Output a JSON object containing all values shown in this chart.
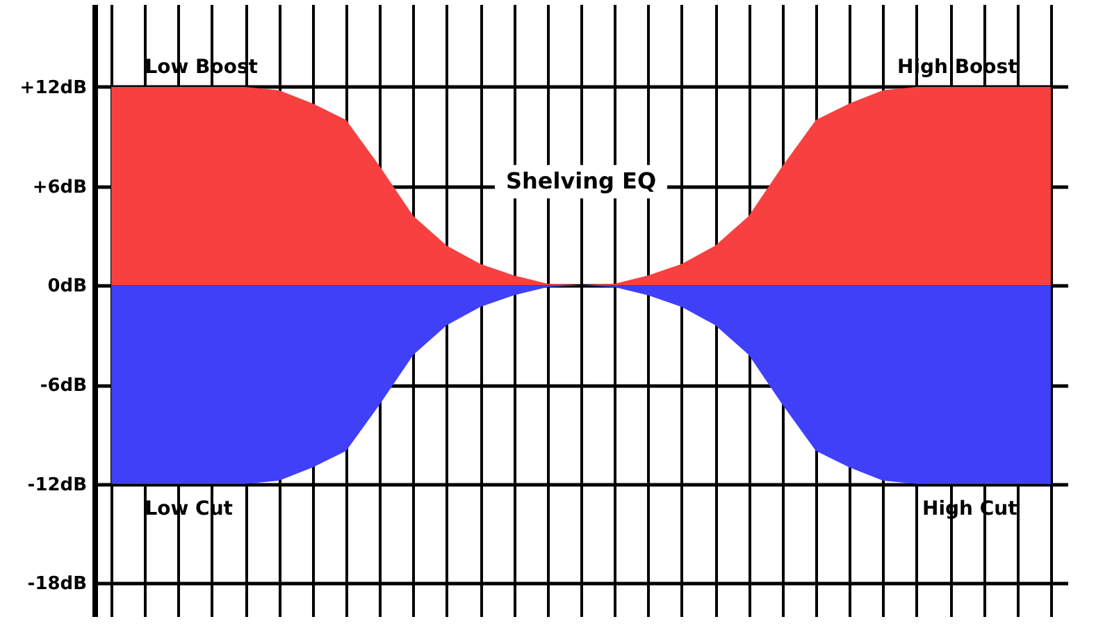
{
  "chart_data": {
    "type": "area",
    "annotations": [
      "Shelving EQ"
    ],
    "categories": [
      null,
      null,
      null,
      null,
      null,
      null,
      null,
      null,
      null,
      null,
      null,
      null,
      null,
      null,
      null,
      null,
      null,
      null,
      null,
      null,
      null,
      null,
      null,
      null,
      null,
      null,
      null,
      null,
      null
    ],
    "series": [
      {
        "name": "Low Boost",
        "color": "#f84040",
        "values": [
          12,
          12,
          12,
          12,
          12,
          11.8,
          11,
          10,
          7.2,
          4.2,
          2.4,
          1.3,
          0.6,
          0.1,
          0,
          null,
          null,
          null,
          null,
          null,
          null,
          null,
          null,
          null,
          null,
          null,
          null,
          null,
          null
        ]
      },
      {
        "name": "Low Cut",
        "color": "#4040f8",
        "values": [
          -12,
          -12,
          -12,
          -12,
          -12,
          -11.8,
          -11,
          -10,
          -7.2,
          -4.2,
          -2.4,
          -1.3,
          -0.6,
          -0.1,
          0,
          null,
          null,
          null,
          null,
          null,
          null,
          null,
          null,
          null,
          null,
          null,
          null,
          null,
          null
        ]
      },
      {
        "name": "High Boost",
        "color": "#f84040",
        "values": [
          null,
          null,
          null,
          null,
          null,
          null,
          null,
          null,
          null,
          null,
          null,
          null,
          null,
          null,
          0,
          0.1,
          0.6,
          1.3,
          2.4,
          4.2,
          7.2,
          10,
          11,
          11.8,
          12,
          12,
          12,
          12,
          12
        ]
      },
      {
        "name": "High Cut",
        "color": "#4040f8",
        "values": [
          null,
          null,
          null,
          null,
          null,
          null,
          null,
          null,
          null,
          null,
          null,
          null,
          null,
          null,
          0,
          -0.1,
          -0.6,
          -1.3,
          -2.4,
          -4.2,
          -7.2,
          -10,
          -11,
          -11.8,
          -12,
          -12,
          -12,
          -12,
          -12
        ]
      }
    ],
    "ylim": [
      -20,
      17
    ],
    "yticks": [
      {
        "value": 12,
        "label": "+12dB"
      },
      {
        "value": 6,
        "label": "+6dB"
      },
      {
        "value": 0,
        "label": "0dB"
      },
      {
        "value": -6,
        "label": "-6dB"
      },
      {
        "value": -12,
        "label": "-12dB"
      },
      {
        "value": -18,
        "label": "-18dB"
      }
    ],
    "grid": true,
    "tick_labels": "y"
  }
}
